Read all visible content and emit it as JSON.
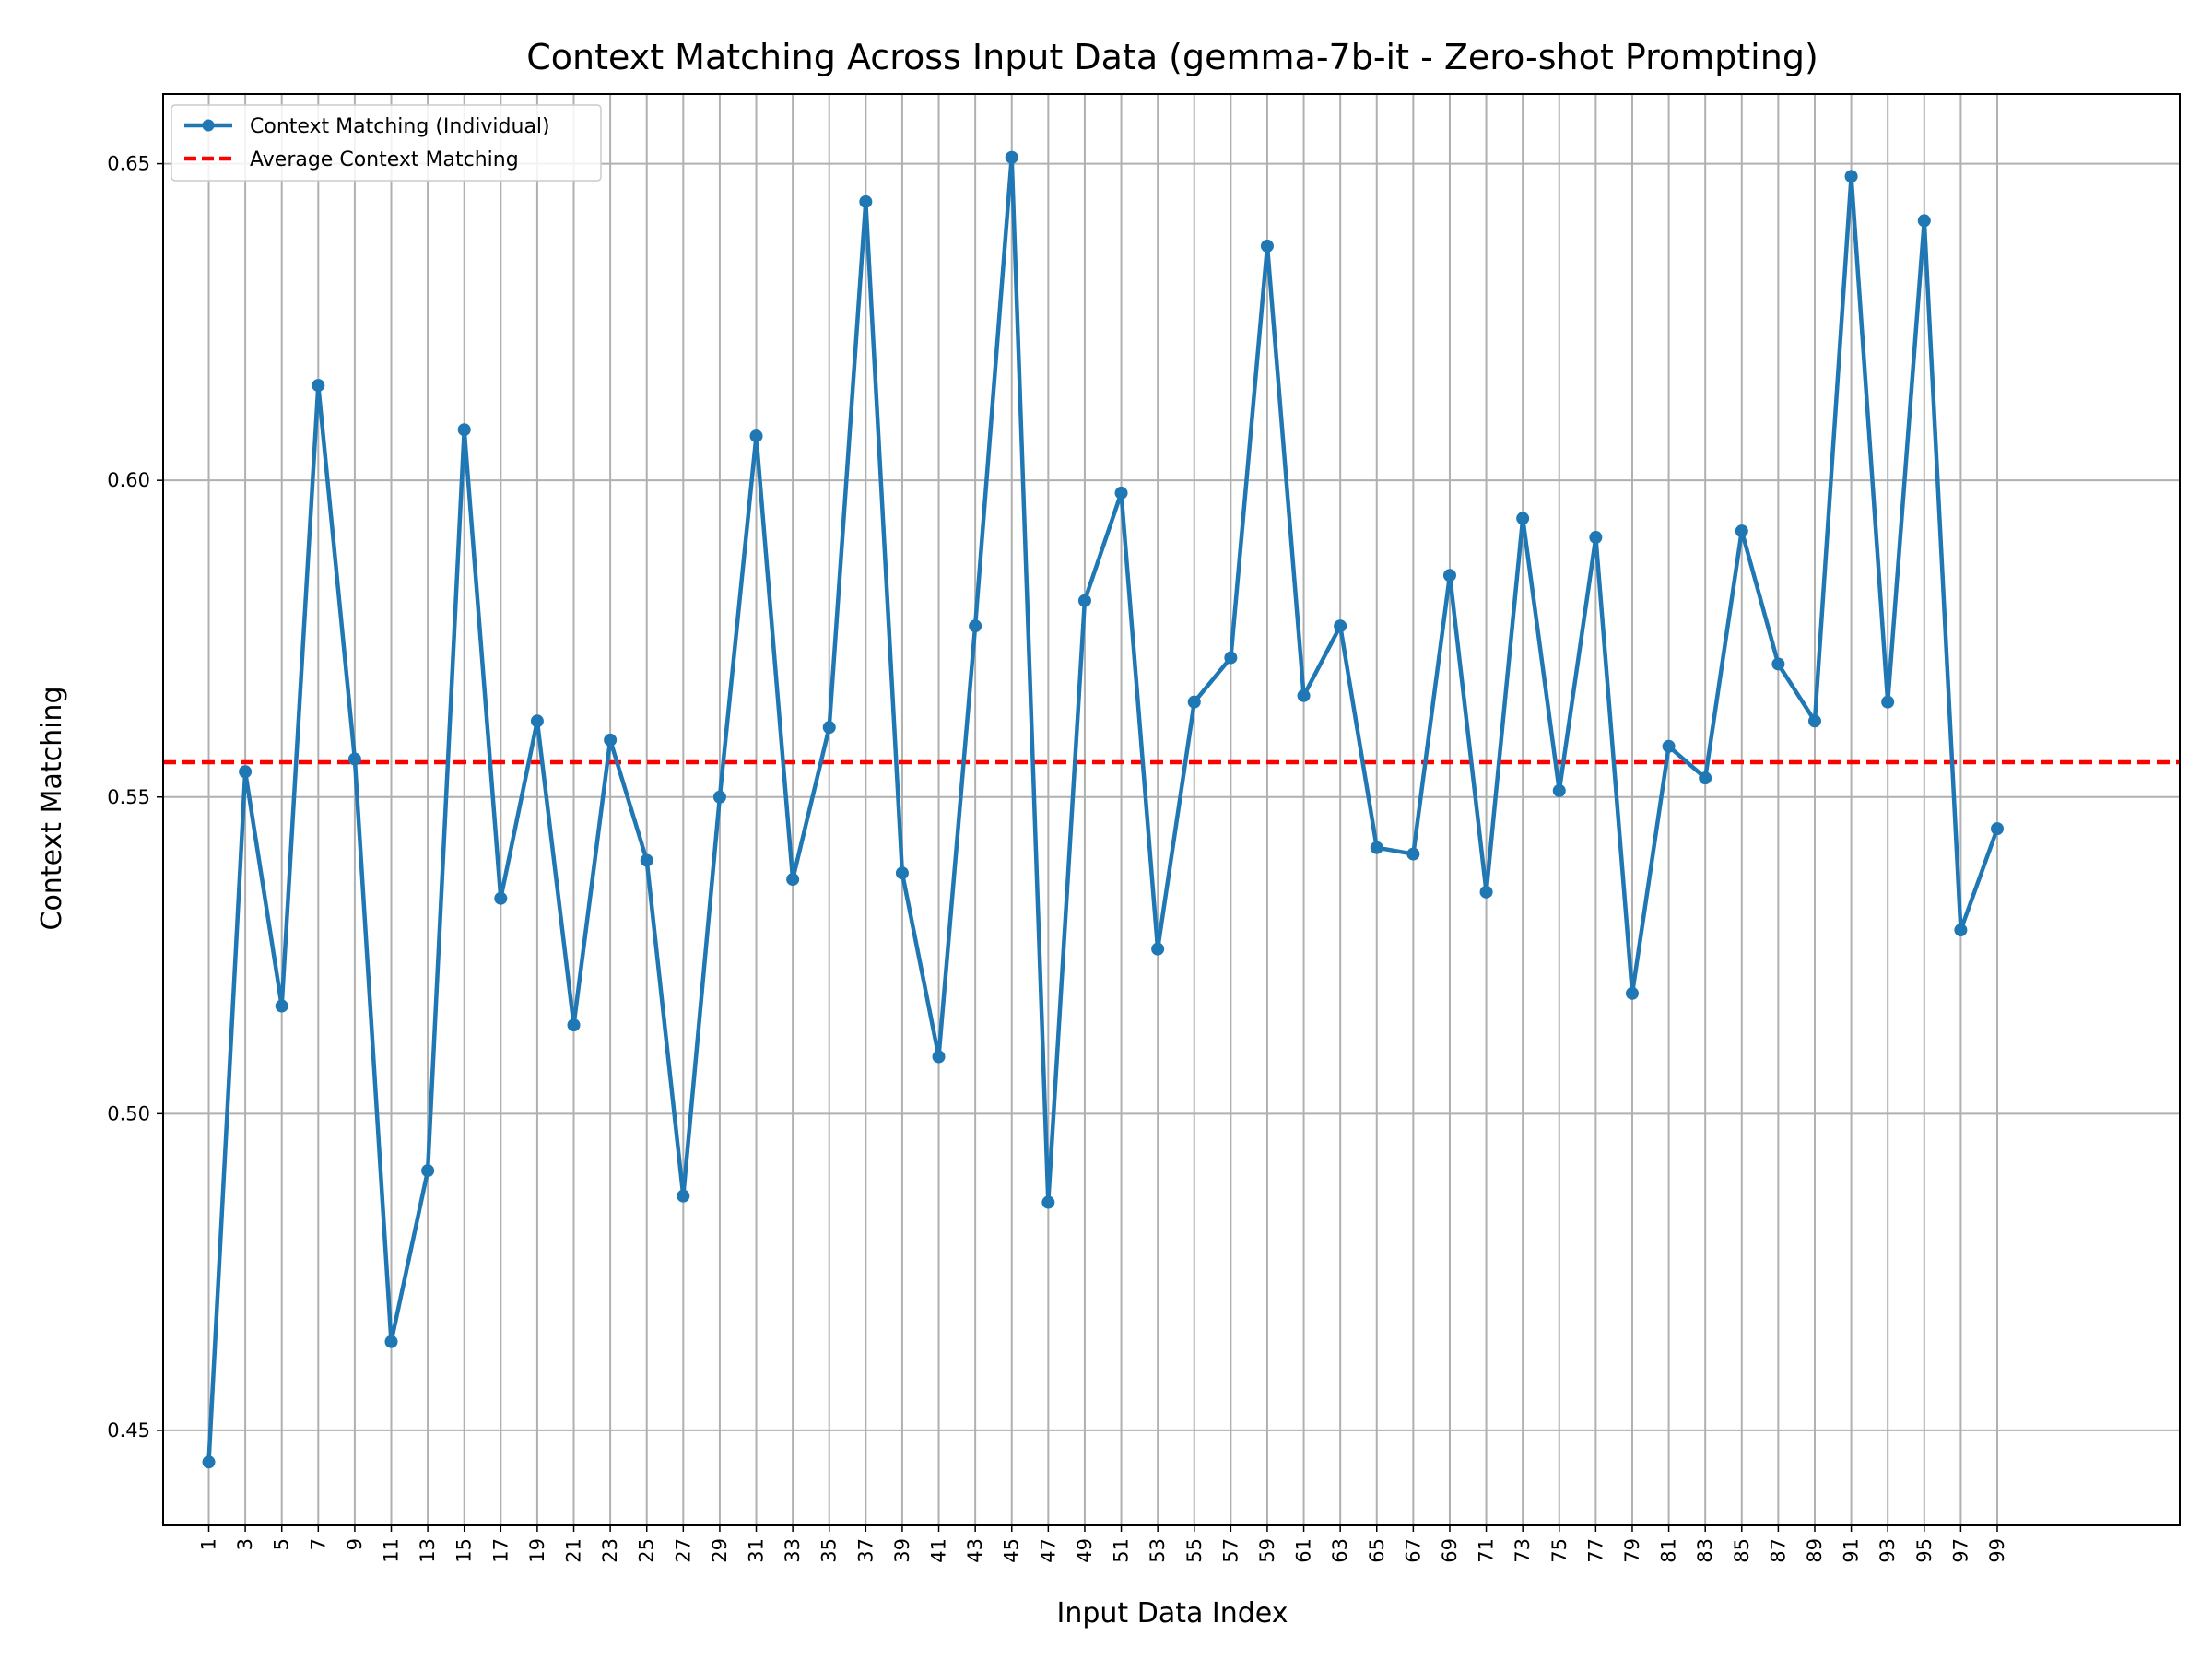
{
  "chart_data": {
    "type": "line",
    "title": "Context Matching Across Input Data (gemma-7b-it - Zero-shot Prompting)",
    "xlabel": "Input Data Index",
    "ylabel": "Context Matching",
    "xlim": [
      -1.5,
      109
    ],
    "ylim": [
      0.435,
      0.661
    ],
    "x_ticks": [
      1,
      3,
      5,
      7,
      9,
      11,
      13,
      15,
      17,
      19,
      21,
      23,
      25,
      27,
      29,
      31,
      33,
      35,
      37,
      39,
      41,
      43,
      45,
      47,
      49,
      51,
      53,
      55,
      57,
      59,
      61,
      63,
      65,
      67,
      69,
      71,
      73,
      75,
      77,
      79,
      81,
      83,
      85,
      87,
      89,
      91,
      93,
      95,
      97,
      99
    ],
    "y_ticks": [
      0.45,
      0.5,
      0.55,
      0.6,
      0.65
    ],
    "y_tick_labels": [
      "0.45",
      "0.50",
      "0.55",
      "0.60",
      "0.65"
    ],
    "grid": true,
    "legend_position": "top-left",
    "series": [
      {
        "name": "Context Matching (Individual)",
        "style": "solid line with circle markers",
        "color": "#1f77b4",
        "x": [
          1,
          3,
          5,
          7,
          9,
          11,
          13,
          15,
          17,
          19,
          21,
          23,
          25,
          27,
          29,
          31,
          33,
          35,
          37,
          39,
          41,
          43,
          45,
          47,
          49,
          51,
          53,
          55,
          57,
          59,
          61,
          63,
          65,
          67,
          69,
          71,
          73,
          75,
          77,
          79,
          81,
          83,
          85,
          87,
          89,
          91,
          93,
          95,
          97,
          99
        ],
        "values": [
          0.445,
          0.554,
          0.517,
          0.615,
          0.556,
          0.464,
          0.491,
          0.608,
          0.534,
          0.562,
          0.514,
          0.559,
          0.54,
          0.487,
          0.55,
          0.607,
          0.537,
          0.561,
          0.644,
          0.538,
          0.509,
          0.577,
          0.651,
          0.486,
          0.581,
          0.598,
          0.526,
          0.565,
          0.572,
          0.637,
          0.566,
          0.577,
          0.542,
          0.541,
          0.585,
          0.535,
          0.594,
          0.551,
          0.591,
          0.519,
          0.558,
          0.553,
          0.592,
          0.571,
          0.562,
          0.648,
          0.565,
          0.641,
          0.529,
          0.545
        ]
      },
      {
        "name": "Average Context Matching",
        "style": "dashed horizontal line",
        "color": "#ff0000",
        "value": 0.5555
      }
    ]
  }
}
